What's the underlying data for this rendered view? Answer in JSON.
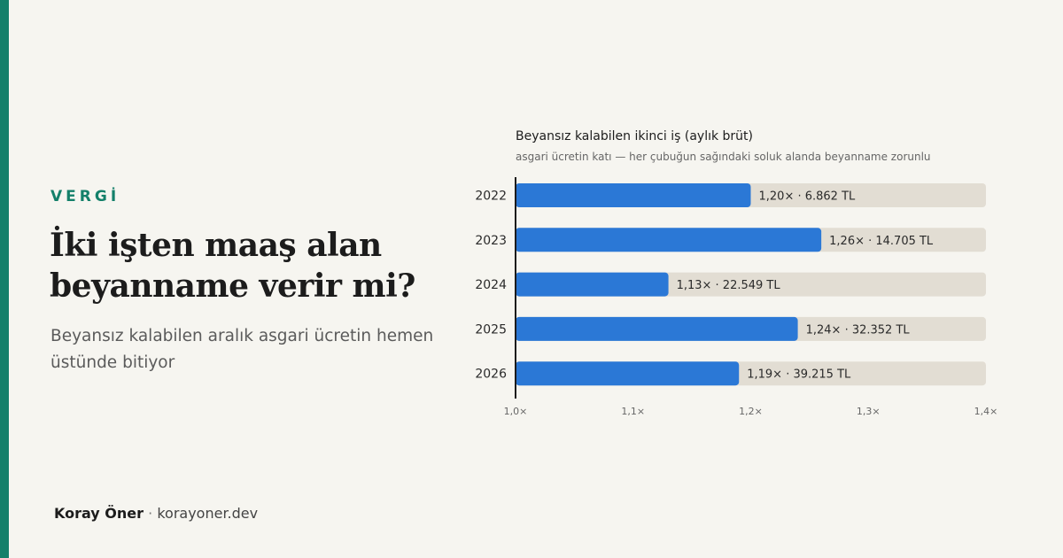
{
  "category": "VERGİ",
  "headline": "İki işten maaş alan beyanname verir mi?",
  "subtitle": "Beyansız kalabilen aralık asgari ücretin hemen üstünde bitiyor",
  "byline": {
    "author": "Koray Öner",
    "separator": "·",
    "site": "korayoner.dev"
  },
  "colors": {
    "accent": "#14806a",
    "bar": "#2b78d6",
    "track": "#e2ddd3",
    "background": "#f6f5f0"
  },
  "chart_data": {
    "type": "bar",
    "orientation": "horizontal",
    "title": "Beyansız kalabilen ikinci iş (aylık brüt)",
    "subtitle": "asgari ücretin katı — her çubuğun sağındaki soluk alanda beyanname zorunlu",
    "categories": [
      "2022",
      "2023",
      "2024",
      "2025",
      "2026"
    ],
    "values": [
      1.2,
      1.26,
      1.13,
      1.24,
      1.19
    ],
    "labels": [
      "1,20× · 6.862 TL",
      "1,26× · 14.705 TL",
      "1,13× · 22.549 TL",
      "1,24× · 32.352 TL",
      "1,19× · 39.215 TL"
    ],
    "xlim": [
      1.0,
      1.4
    ],
    "xticks": [
      1.0,
      1.1,
      1.2,
      1.3,
      1.4
    ],
    "xtick_labels": [
      "1,0×",
      "1,1×",
      "1,2×",
      "1,3×",
      "1,4×"
    ],
    "grid": false
  }
}
